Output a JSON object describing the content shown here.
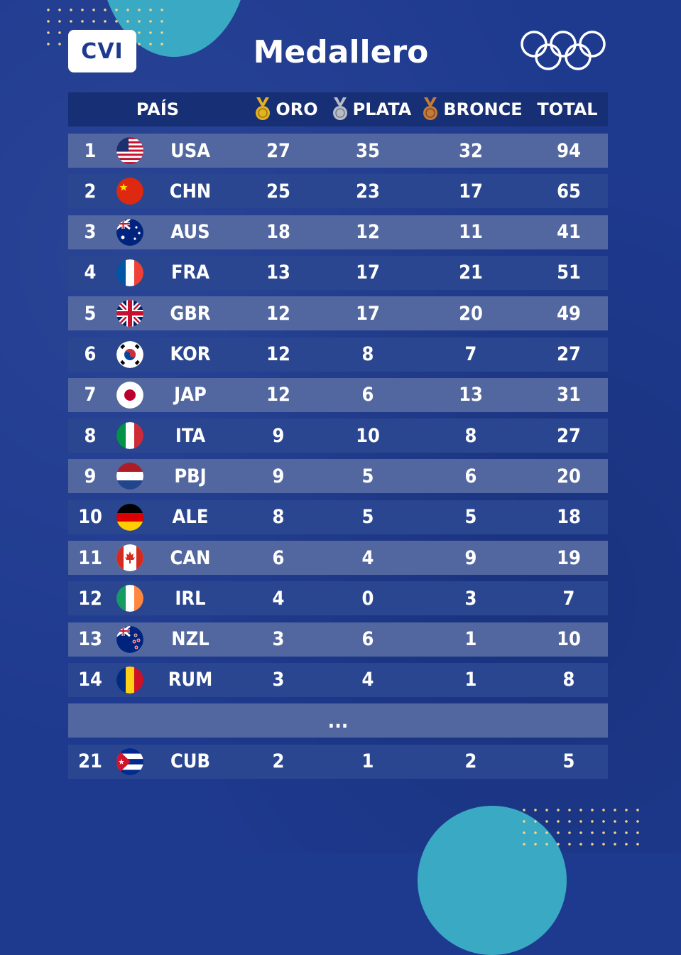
{
  "header": {
    "logo_text": "CVI",
    "title": "Medallero"
  },
  "icons": {
    "logo": "cvi-logo",
    "rings": "olympic-rings-icon",
    "gold": "gold-medal-icon",
    "silver": "silver-medal-icon",
    "bronze": "bronze-medal-icon"
  },
  "colors": {
    "background": "#1e3a8f",
    "accent": "#3aa9c4",
    "gold": "#e3b21f",
    "silver": "#b7bcc6",
    "bronze": "#c47a3a"
  },
  "columns": {
    "country": "PAÍS",
    "gold": "ORO",
    "silver": "PLATA",
    "bronze": "BRONCE",
    "total": "TOTAL"
  },
  "rows": [
    {
      "pos": "1",
      "code": "USA",
      "flag": "usa",
      "gold": "27",
      "silver": "35",
      "bronze": "32",
      "total": "94"
    },
    {
      "pos": "2",
      "code": "CHN",
      "flag": "china",
      "gold": "25",
      "silver": "23",
      "bronze": "17",
      "total": "65"
    },
    {
      "pos": "3",
      "code": "AUS",
      "flag": "australia",
      "gold": "18",
      "silver": "12",
      "bronze": "11",
      "total": "41"
    },
    {
      "pos": "4",
      "code": "FRA",
      "flag": "france",
      "gold": "13",
      "silver": "17",
      "bronze": "21",
      "total": "51"
    },
    {
      "pos": "5",
      "code": "GBR",
      "flag": "uk",
      "gold": "12",
      "silver": "17",
      "bronze": "20",
      "total": "49"
    },
    {
      "pos": "6",
      "code": "KOR",
      "flag": "korea",
      "gold": "12",
      "silver": "8",
      "bronze": "7",
      "total": "27"
    },
    {
      "pos": "7",
      "code": "JAP",
      "flag": "japan",
      "gold": "12",
      "silver": "6",
      "bronze": "13",
      "total": "31"
    },
    {
      "pos": "8",
      "code": "ITA",
      "flag": "italy",
      "gold": "9",
      "silver": "10",
      "bronze": "8",
      "total": "27"
    },
    {
      "pos": "9",
      "code": "PBJ",
      "flag": "netherlands",
      "gold": "9",
      "silver": "5",
      "bronze": "6",
      "total": "20"
    },
    {
      "pos": "10",
      "code": "ALE",
      "flag": "germany",
      "gold": "8",
      "silver": "5",
      "bronze": "5",
      "total": "18"
    },
    {
      "pos": "11",
      "code": "CAN",
      "flag": "canada",
      "gold": "6",
      "silver": "4",
      "bronze": "9",
      "total": "19"
    },
    {
      "pos": "12",
      "code": "IRL",
      "flag": "ireland",
      "gold": "4",
      "silver": "0",
      "bronze": "3",
      "total": "7"
    },
    {
      "pos": "13",
      "code": "NZL",
      "flag": "newzealand",
      "gold": "3",
      "silver": "6",
      "bronze": "1",
      "total": "10"
    },
    {
      "pos": "14",
      "code": "RUM",
      "flag": "romania",
      "gold": "3",
      "silver": "4",
      "bronze": "1",
      "total": "8"
    }
  ],
  "ellipsis": "...",
  "last_row": {
    "pos": "21",
    "code": "CUB",
    "flag": "cuba",
    "gold": "2",
    "silver": "1",
    "bronze": "2",
    "total": "5"
  }
}
